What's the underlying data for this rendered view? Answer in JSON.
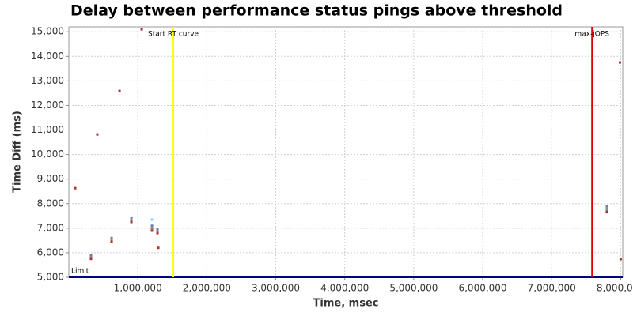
{
  "chart_data": {
    "type": "scatter",
    "title": "Delay between performance status pings above threshold",
    "x_label": "Time, msec",
    "y_label": "Time Diff (ms)",
    "x": [
      92000,
      321000,
      321000,
      321000,
      413000,
      620000,
      620000,
      620000,
      735000,
      907000,
      907000,
      907000,
      1056000,
      1205000,
      1205000,
      1205000,
      1205000,
      1285000,
      1285000,
      1285000,
      1297000,
      7800000,
      7800000,
      7800000,
      7800000,
      7990000,
      8000000
    ],
    "values": [
      8630,
      5900,
      5800,
      5750,
      10820,
      6600,
      6500,
      6450,
      12590,
      7400,
      7300,
      7250,
      15100,
      7350,
      7100,
      7000,
      6900,
      6950,
      6850,
      6800,
      6200,
      7900,
      7800,
      7700,
      7650,
      13750,
      5740
    ],
    "point_colors": [
      "#b03030",
      "#6a7fb0",
      "#9a6060",
      "#b03030",
      "#b03030",
      "#6a7fb0",
      "#8a9a60",
      "#b03030",
      "#b03030",
      "#6a7fb0",
      "#8a9a60",
      "#b03030",
      "#9a3050",
      "#80d8f0",
      "#6a7fb0",
      "#8a7060",
      "#b03030",
      "#6a7fb0",
      "#8a9a60",
      "#b03030",
      "#b03030",
      "#6a7fb0",
      "#60a0a0",
      "#8a7060",
      "#b03030",
      "#b03030",
      "#b03030"
    ],
    "xlim": [
      0,
      8030000
    ],
    "ylim": [
      5000,
      15200
    ],
    "xticks": [
      {
        "value": 1000000,
        "label": "1,000,000"
      },
      {
        "value": 2000000,
        "label": "2,000,000"
      },
      {
        "value": 3000000,
        "label": "3,000,000"
      },
      {
        "value": 4000000,
        "label": "4,000,000"
      },
      {
        "value": 5000000,
        "label": "5,000,000"
      },
      {
        "value": 6000000,
        "label": "6,000,000"
      },
      {
        "value": 7000000,
        "label": "7,000,000"
      },
      {
        "value": 8000000,
        "label": "8,000,000"
      }
    ],
    "yticks": [
      {
        "value": 5000,
        "label": "5,000"
      },
      {
        "value": 6000,
        "label": "6,000"
      },
      {
        "value": 7000,
        "label": "7,000"
      },
      {
        "value": 8000,
        "label": "8,000"
      },
      {
        "value": 9000,
        "label": "9,000"
      },
      {
        "value": 10000,
        "label": "10,000"
      },
      {
        "value": 11000,
        "label": "11,000"
      },
      {
        "value": 12000,
        "label": "12,000"
      },
      {
        "value": 13000,
        "label": "13,000"
      },
      {
        "value": 14000,
        "label": "14,000"
      },
      {
        "value": 15000,
        "label": "15,000"
      }
    ],
    "grid": true,
    "vertical_markers": [
      {
        "label": "Start RT curve",
        "x": 1515000,
        "color": "#ffff00"
      },
      {
        "label": "max-jOPS",
        "x": 7585000,
        "color": "#e00000"
      }
    ],
    "horizontal_markers": [
      {
        "label": "Limit",
        "y": 5000,
        "color": "#000080"
      }
    ]
  }
}
